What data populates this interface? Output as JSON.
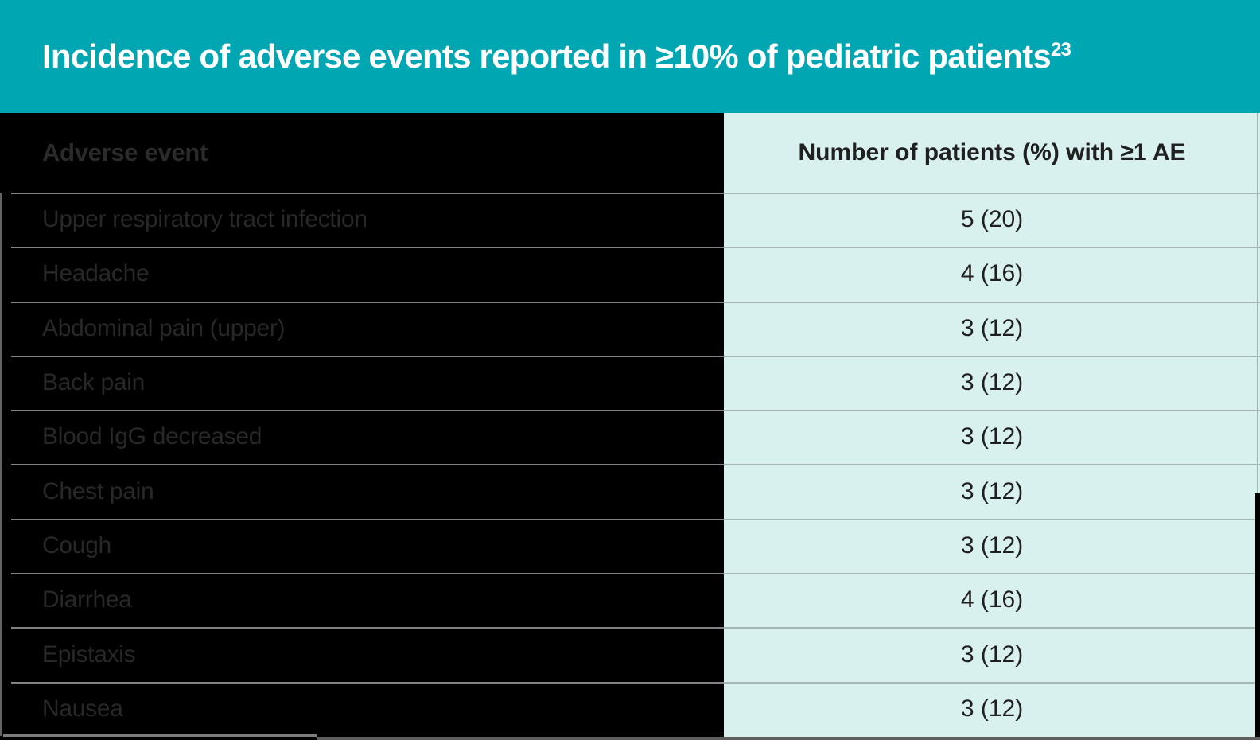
{
  "title": {
    "text": "Incidence of adverse events reported in ≥10% of pediatric patients",
    "reference_superscript": "23"
  },
  "table": {
    "columns": [
      {
        "label": "Adverse event"
      },
      {
        "label": "Number of patients (%) with ≥1 AE"
      }
    ],
    "rows": [
      {
        "event": "Upper respiratory tract infection",
        "value": "5 (20)"
      },
      {
        "event": "Headache",
        "value": "4 (16)"
      },
      {
        "event": "Abdominal pain (upper)",
        "value": "3 (12)"
      },
      {
        "event": "Back pain",
        "value": "3 (12)"
      },
      {
        "event": "Blood IgG decreased",
        "value": "3 (12)"
      },
      {
        "event": "Chest pain",
        "value": "3 (12)"
      },
      {
        "event": "Cough",
        "value": "3 (12)"
      },
      {
        "event": "Diarrhea",
        "value": "4 (16)"
      },
      {
        "event": "Epistaxis",
        "value": "3 (12)"
      },
      {
        "event": "Nausea",
        "value": "3 (12)"
      }
    ]
  },
  "colors": {
    "title_bar_background": "#00A7B2",
    "title_text": "#FFFFFF",
    "event_column_background": "#000000",
    "value_column_background": "#D8F0EE",
    "event_text": "#282828",
    "value_text": "#1F1F20",
    "divider_on_black": "#828282",
    "divider_on_mint": "#A5B7B6"
  }
}
